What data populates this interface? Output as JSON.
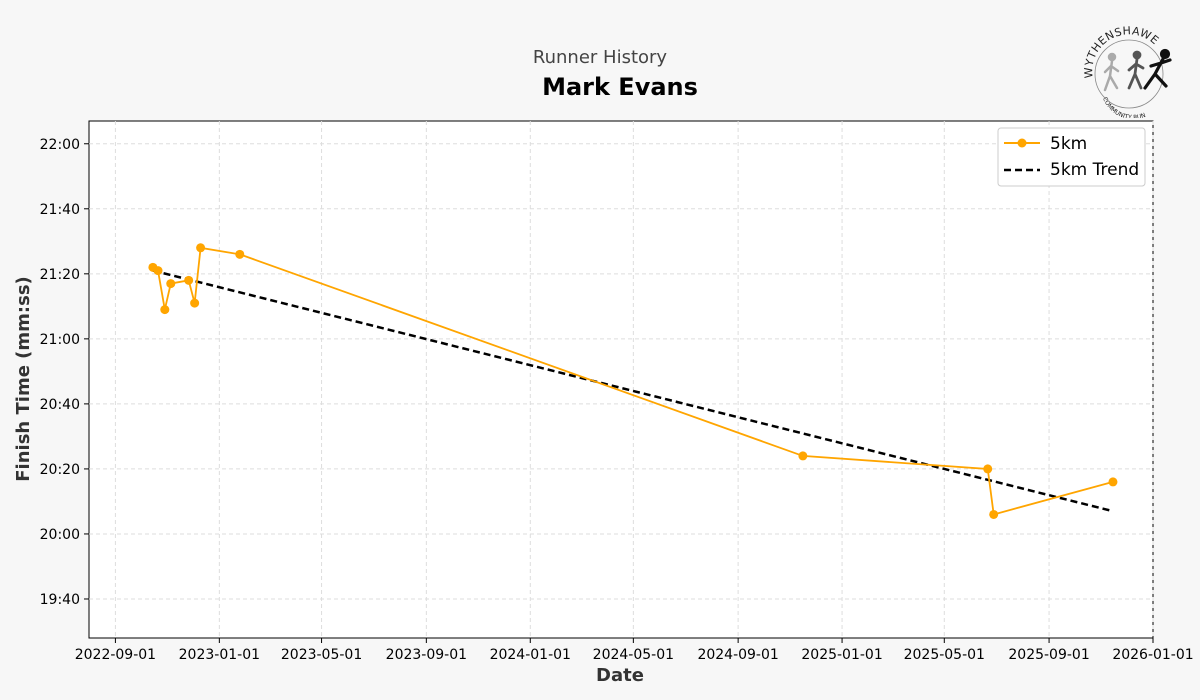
{
  "header": {
    "subtitle": "Runner History",
    "title": "Mark Evans"
  },
  "logo": {
    "text_top": "WYTHENSHAWE",
    "text_bottom": "COMMUNITY RUN",
    "icon": "runners-logo-icon"
  },
  "colors": {
    "series": "#FFA500",
    "trend": "#000000",
    "background": "#f7f7f7",
    "plot_background": "#ffffff"
  },
  "chart_data": {
    "type": "line",
    "xlabel": "Date",
    "ylabel": "Finish Time (mm:ss)",
    "xlim": [
      "2022-08-01",
      "2026-01-01"
    ],
    "ylim": [
      "19:28",
      "22:07"
    ],
    "x_ticks": [
      "2022-09-01",
      "2023-01-01",
      "2023-05-01",
      "2023-09-01",
      "2024-01-01",
      "2024-05-01",
      "2024-09-01",
      "2025-01-01",
      "2025-05-01",
      "2025-09-01",
      "2026-01-01"
    ],
    "y_ticks": [
      "19:40",
      "20:00",
      "20:20",
      "20:40",
      "21:00",
      "21:20",
      "21:40",
      "22:00"
    ],
    "grid": true,
    "legend_position": "top-right",
    "series": [
      {
        "name": "5km",
        "style": "line-with-markers",
        "points": [
          {
            "x": "2022-10-15",
            "y": "21:22"
          },
          {
            "x": "2022-10-21",
            "y": "21:21"
          },
          {
            "x": "2022-10-29",
            "y": "21:09"
          },
          {
            "x": "2022-11-05",
            "y": "21:17"
          },
          {
            "x": "2022-11-26",
            "y": "21:18"
          },
          {
            "x": "2022-12-03",
            "y": "21:11"
          },
          {
            "x": "2022-12-10",
            "y": "21:28"
          },
          {
            "x": "2023-01-25",
            "y": "21:26"
          },
          {
            "x": "2024-11-16",
            "y": "20:24"
          },
          {
            "x": "2025-06-21",
            "y": "20:20"
          },
          {
            "x": "2025-06-28",
            "y": "20:06"
          },
          {
            "x": "2025-11-15",
            "y": "20:16"
          }
        ]
      },
      {
        "name": "5km Trend",
        "style": "dashed",
        "points": [
          {
            "x": "2022-10-15",
            "y": "21:21"
          },
          {
            "x": "2025-11-15",
            "y": "20:07"
          }
        ]
      }
    ]
  }
}
